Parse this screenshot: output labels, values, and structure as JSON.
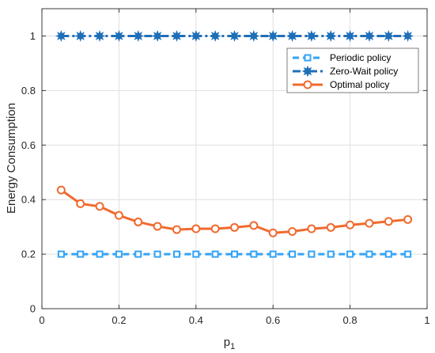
{
  "chart_data": {
    "type": "line",
    "xlabel": "p",
    "xlabel_subscript": "1",
    "ylabel": "Energy Consumption",
    "xlim": [
      0,
      1
    ],
    "ylim": [
      0,
      1.1
    ],
    "grid": true,
    "legend_position": "top-right",
    "x": [
      0.05,
      0.1,
      0.15,
      0.2,
      0.25,
      0.3,
      0.35,
      0.4,
      0.45,
      0.5,
      0.55,
      0.6,
      0.65,
      0.7,
      0.75,
      0.8,
      0.85,
      0.9,
      0.95
    ],
    "x_ticks": [
      0,
      0.2,
      0.4,
      0.6,
      0.8,
      1
    ],
    "x_tick_labels": [
      "0",
      "0.2",
      "0.4",
      "0.6",
      "0.8",
      "1"
    ],
    "y_ticks": [
      0,
      0.2,
      0.4,
      0.6,
      0.8,
      1
    ],
    "y_tick_labels": [
      "0",
      "0.2",
      "0.4",
      "0.6",
      "0.8",
      "1"
    ],
    "series": [
      {
        "name": "Periodic policy",
        "color": "#33a3f5",
        "line_style": "dashed",
        "marker": "square",
        "values": [
          0.2,
          0.2,
          0.2,
          0.2,
          0.2,
          0.2,
          0.2,
          0.2,
          0.2,
          0.2,
          0.2,
          0.2,
          0.2,
          0.2,
          0.2,
          0.2,
          0.2,
          0.2,
          0.2
        ]
      },
      {
        "name": "Zero-Wait policy",
        "color": "#1f6fb8",
        "line_style": "dashdot",
        "marker": "star",
        "values": [
          1,
          1,
          1,
          1,
          1,
          1,
          1,
          1,
          1,
          1,
          1,
          1,
          1,
          1,
          1,
          1,
          1,
          1,
          1
        ]
      },
      {
        "name": "Optimal policy",
        "color": "#f06a2e",
        "line_style": "solid",
        "marker": "circle",
        "values": [
          0.435,
          0.385,
          0.375,
          0.342,
          0.318,
          0.302,
          0.29,
          0.293,
          0.293,
          0.298,
          0.305,
          0.278,
          0.283,
          0.293,
          0.298,
          0.307,
          0.313,
          0.32,
          0.327
        ]
      }
    ]
  }
}
